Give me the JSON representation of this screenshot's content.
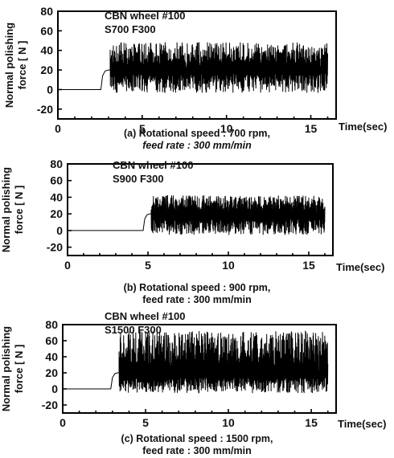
{
  "chart_data": [
    {
      "type": "line",
      "title": "",
      "annotation_lines": [
        "CBN wheel #100",
        "S700 F300"
      ],
      "xlabel": "Time(sec)",
      "ylabel_lines": [
        "Normal polishing",
        "force [ N ]"
      ],
      "xlim": [
        0,
        16.5
      ],
      "ylim": [
        -30,
        80
      ],
      "x_ticks": [
        0,
        5,
        10,
        15
      ],
      "y_ticks": [
        -20,
        0,
        20,
        40,
        60,
        80
      ],
      "caption_lines": [
        "(a) Rotational speed : 700 rpm,",
        "feed rate : 300 mm/min"
      ],
      "series": [
        {
          "baseline": {
            "x": [
              0,
              2.55
            ],
            "y": [
              0,
              0
            ]
          },
          "ramp": {
            "x": [
              2.55,
              2.65,
              2.8,
              3.0,
              3.1
            ],
            "y": [
              0,
              14,
              19,
              20,
              20
            ]
          },
          "noisy_segment": {
            "x_start": 3.1,
            "x_end": 16.0,
            "mean": 20,
            "min": -3,
            "max": 48
          }
        }
      ]
    },
    {
      "type": "line",
      "title": "",
      "annotation_lines": [
        "CBN wheel #100",
        "S900 F300"
      ],
      "xlabel": "Time(sec)",
      "ylabel_lines": [
        "Normal polishing",
        "force [ N ]"
      ],
      "xlim": [
        0,
        16.5
      ],
      "ylim": [
        -30,
        80
      ],
      "x_ticks": [
        0,
        5,
        10,
        15
      ],
      "y_ticks": [
        -20,
        0,
        20,
        40,
        60,
        80
      ],
      "caption_lines": [
        "(b) Rotational speed : 900 rpm,",
        "feed rate : 300 mm/min"
      ],
      "series": [
        {
          "baseline": {
            "x": [
              0,
              4.7
            ],
            "y": [
              0,
              0
            ]
          },
          "ramp": {
            "x": [
              4.7,
              4.8,
              4.95,
              5.1,
              5.2
            ],
            "y": [
              0,
              14,
              19,
              20,
              20
            ]
          },
          "noisy_segment": {
            "x_start": 5.2,
            "x_end": 16.0,
            "mean": 18,
            "min": -5,
            "max": 42
          }
        }
      ]
    },
    {
      "type": "line",
      "title": "",
      "annotation_lines": [
        "CBN wheel #100",
        "S1500 F300"
      ],
      "xlabel": "Time(sec)",
      "ylabel_lines": [
        "Normal polishing",
        "force [ N ]"
      ],
      "xlim": [
        0,
        16.5
      ],
      "ylim": [
        -30,
        80
      ],
      "x_ticks": [
        0,
        5,
        10,
        15
      ],
      "y_ticks": [
        -20,
        0,
        20,
        40,
        60,
        80
      ],
      "caption_lines": [
        "(c) Rotational speed : 1500 rpm,",
        "feed rate : 300 mm/min"
      ],
      "series": [
        {
          "baseline": {
            "x": [
              0,
              2.9
            ],
            "y": [
              0,
              0
            ]
          },
          "ramp": {
            "x": [
              2.9,
              3.0,
              3.15,
              3.3,
              3.4
            ],
            "y": [
              0,
              14,
              19,
              20,
              20
            ]
          },
          "noisy_segment": {
            "x_start": 3.4,
            "x_end": 16.0,
            "mean": 18,
            "min": -5,
            "max": 72
          }
        }
      ]
    }
  ]
}
